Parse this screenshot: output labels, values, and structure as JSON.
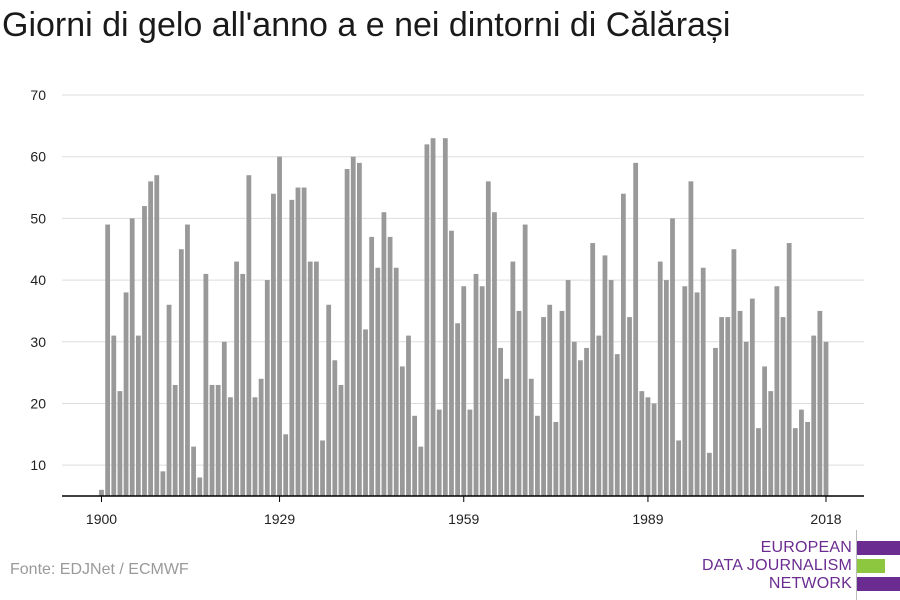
{
  "title": "Giorni di gelo all'anno a e nei dintorni di Călărași",
  "source": "Fonte: EDJNet / ECMWF",
  "logo": {
    "lines": [
      "EUROPEAN",
      "DATA JOURNALISM",
      "NETWORK"
    ],
    "colors": {
      "purple": "#6b2c91",
      "green": "#8dc63f"
    }
  },
  "colors": {
    "bar": "#999999",
    "grid": "#dddddd",
    "axis": "#000000"
  },
  "chart_data": {
    "type": "bar",
    "title": "Giorni di gelo all'anno a e nei dintorni di Călărași",
    "xlabel": "",
    "ylabel": "",
    "ylim": [
      5,
      70
    ],
    "yticks": [
      10,
      20,
      30,
      40,
      50,
      60,
      70
    ],
    "xticks": [
      1900,
      1929,
      1959,
      1989,
      2018
    ],
    "grid": true,
    "x": [
      1900,
      1901,
      1902,
      1903,
      1904,
      1905,
      1906,
      1907,
      1908,
      1909,
      1910,
      1911,
      1912,
      1913,
      1914,
      1915,
      1916,
      1917,
      1918,
      1919,
      1920,
      1921,
      1922,
      1923,
      1924,
      1925,
      1926,
      1927,
      1928,
      1929,
      1930,
      1931,
      1932,
      1933,
      1934,
      1935,
      1936,
      1937,
      1938,
      1939,
      1940,
      1941,
      1942,
      1943,
      1944,
      1945,
      1946,
      1947,
      1948,
      1949,
      1950,
      1951,
      1952,
      1953,
      1954,
      1955,
      1956,
      1957,
      1958,
      1959,
      1960,
      1961,
      1962,
      1963,
      1964,
      1965,
      1966,
      1967,
      1968,
      1969,
      1970,
      1971,
      1972,
      1973,
      1974,
      1975,
      1976,
      1977,
      1978,
      1979,
      1980,
      1981,
      1982,
      1983,
      1984,
      1985,
      1986,
      1987,
      1988,
      1989,
      1990,
      1991,
      1992,
      1993,
      1994,
      1995,
      1996,
      1997,
      1998,
      1999,
      2000,
      2001,
      2002,
      2003,
      2004,
      2005,
      2006,
      2007,
      2008,
      2009,
      2010,
      2011,
      2012,
      2013,
      2014,
      2015,
      2016,
      2017,
      2018
    ],
    "values": [
      6,
      49,
      31,
      22,
      38,
      50,
      31,
      52,
      56,
      57,
      9,
      36,
      23,
      45,
      49,
      13,
      8,
      41,
      23,
      23,
      30,
      21,
      43,
      41,
      57,
      21,
      24,
      40,
      54,
      60,
      15,
      53,
      55,
      55,
      43,
      43,
      14,
      36,
      27,
      23,
      58,
      60,
      59,
      32,
      47,
      42,
      51,
      47,
      42,
      26,
      31,
      18,
      13,
      62,
      63,
      19,
      63,
      48,
      33,
      39,
      19,
      41,
      39,
      56,
      51,
      29,
      24,
      43,
      35,
      49,
      24,
      18,
      34,
      36,
      17,
      35,
      40,
      30,
      27,
      29,
      46,
      31,
      44,
      40,
      28,
      54,
      34,
      59,
      22,
      21,
      20,
      43,
      40,
      50,
      14,
      39,
      56,
      38,
      42,
      12,
      29,
      34,
      34,
      45,
      35,
      30,
      37,
      16,
      26,
      22,
      39,
      34,
      46,
      16,
      19,
      17,
      31,
      35,
      30
    ]
  }
}
